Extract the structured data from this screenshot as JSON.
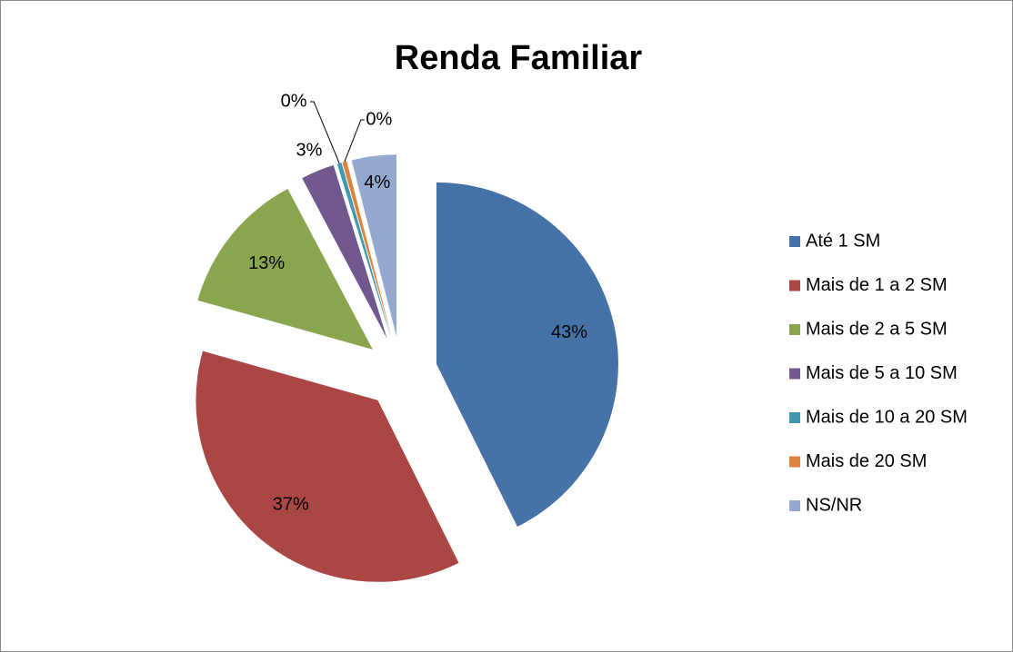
{
  "chart_data": {
    "type": "pie",
    "title": "Renda Familiar",
    "categories": [
      "Até 1 SM",
      "Mais de 1 a 2 SM",
      "Mais de 2 a 5 SM",
      "Mais de 5 a 10 SM",
      "Mais de 10 a 20 SM",
      "Mais de 20 SM",
      "NS/NR"
    ],
    "values": [
      43,
      37,
      13,
      3,
      0.4,
      0.4,
      4
    ],
    "value_labels": [
      "43%",
      "37%",
      "13%",
      "3%",
      "0%",
      "0%",
      "4%"
    ],
    "colors": [
      "#4572a7",
      "#aa4643",
      "#89a54e",
      "#71588f",
      "#4198af",
      "#db843d",
      "#93a9cf"
    ],
    "legend": "right"
  }
}
